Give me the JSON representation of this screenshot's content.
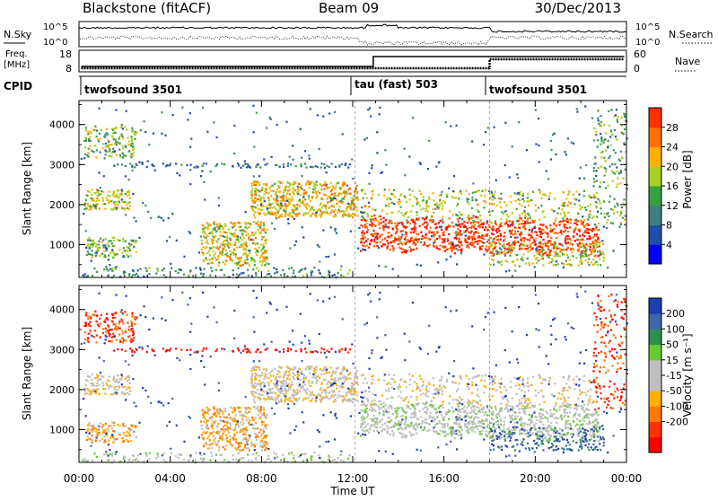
{
  "header": {
    "station": "Blackstone (fitACF)",
    "beam": "Beam 09",
    "date": "30/Dec/2013"
  },
  "top_panels": {
    "nsky_label": "N.Sky",
    "nsearch_label": "N.Search",
    "log_ticks": [
      "10^5",
      "10^0"
    ],
    "freq_label_1": "Freq.",
    "freq_label_2": "[MHz]",
    "freq_ticks": [
      "18",
      "8"
    ],
    "nave_label": "Nave",
    "nave_ticks": [
      "60",
      "0"
    ],
    "cpid_label": "CPID",
    "cpid_segments": [
      {
        "label": "twofsound 3501",
        "start_hour": 0
      },
      {
        "label": "tau (fast) 503",
        "start_hour": 12.1
      },
      {
        "label": "twofsound 3501",
        "start_hour": 18
      }
    ]
  },
  "colors": {
    "power_scale": [
      "#0000ff",
      "#1f4fa8",
      "#3f7f7f",
      "#39a040",
      "#a8d020",
      "#ffb000",
      "#ff7000",
      "#ff3000",
      "#ff0000"
    ],
    "velocity_scale": [
      "#1f3fb0",
      "#3f66aa",
      "#2f8f4f",
      "#66cc33",
      "#bfbfbf",
      "#bfbfbf",
      "#ffb000",
      "#ff7800",
      "#ff3000",
      "#ff0000"
    ]
  },
  "chart_data": [
    {
      "type": "heatmap",
      "name": "power",
      "xlabel": "Time UT",
      "ylabel": "Slant Range [km]",
      "x_ticks": [
        "00:00",
        "04:00",
        "08:00",
        "12:00",
        "16:00",
        "20:00",
        "00:00"
      ],
      "y_ticks": [
        "1000",
        "2000",
        "3000",
        "4000"
      ],
      "xlim": [
        0,
        24
      ],
      "ylim": [
        180,
        4600
      ],
      "colorbar_label": "Power [dB]",
      "colorbar_ticks": [
        "4",
        "8",
        "12",
        "16",
        "20",
        "24",
        "28"
      ],
      "features": [
        {
          "t_start": 0.2,
          "t_end": 2.5,
          "r_center": 3500,
          "level": "low"
        },
        {
          "t_start": 5.5,
          "t_end": 8.0,
          "r_center": 1000,
          "level": "medium"
        },
        {
          "t_start": 8.0,
          "t_end": 12.0,
          "r_center": 2200,
          "level": "medium"
        },
        {
          "t_start": 12.3,
          "t_end": 23.0,
          "r_center": 1200,
          "level": "high"
        }
      ]
    },
    {
      "type": "heatmap",
      "name": "velocity",
      "xlabel": "Time UT",
      "ylabel": "Slant Range [km]",
      "x_ticks": [
        "00:00",
        "04:00",
        "08:00",
        "12:00",
        "16:00",
        "20:00",
        "00:00"
      ],
      "y_ticks": [
        "1000",
        "2000",
        "3000",
        "4000"
      ],
      "xlim": [
        0,
        24
      ],
      "ylim": [
        180,
        4600
      ],
      "colorbar_label": "Velocity [m s⁻¹]",
      "colorbar_ticks": [
        "200",
        "100",
        "50",
        "15",
        "-15",
        "-50",
        "-100",
        "-200"
      ]
    }
  ]
}
